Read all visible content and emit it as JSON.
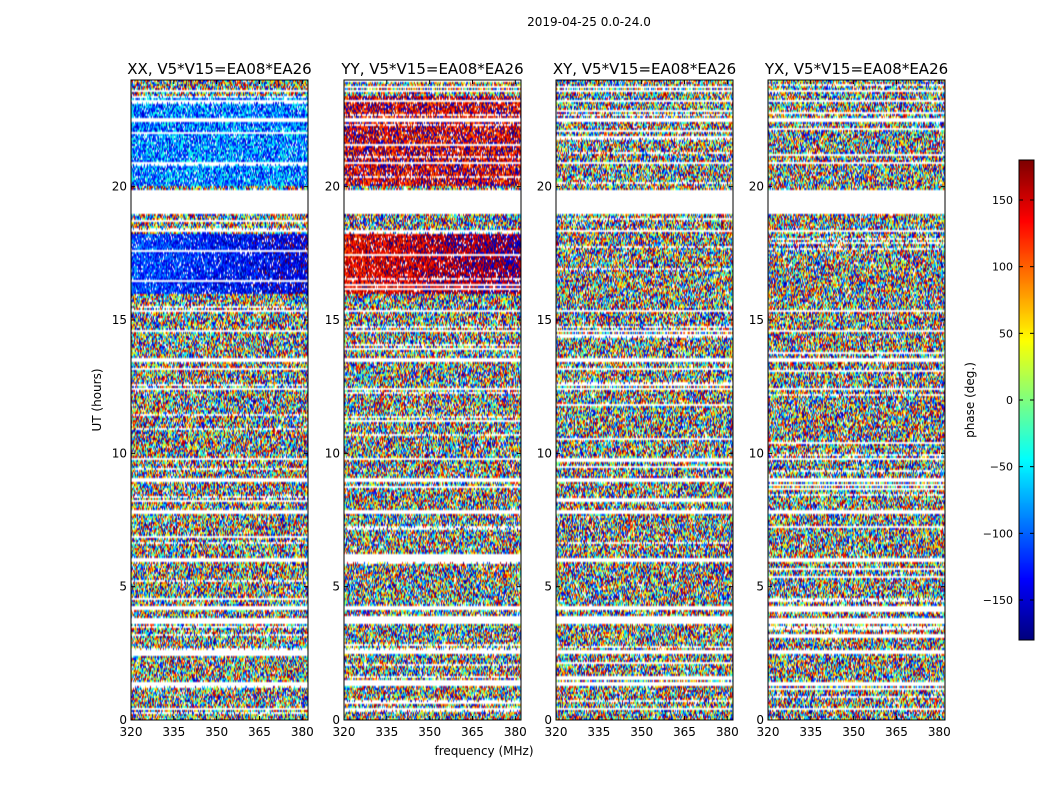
{
  "chart_data": {
    "type": "heatmap",
    "suptitle": "2019-04-25 0.0-24.0",
    "xlabel": "frequency (MHz)",
    "ylabel": "UT (hours)",
    "xlim": [
      320,
      382
    ],
    "ylim": [
      0,
      24
    ],
    "xticks": [
      320,
      335,
      350,
      365,
      380
    ],
    "yticks": [
      0,
      5,
      10,
      15,
      20
    ],
    "colorbar": {
      "label": "phase (deg.)",
      "range": [
        -180,
        180
      ],
      "ticks": [
        -150,
        -100,
        -50,
        0,
        50,
        100,
        150
      ],
      "tick_labels": [
        "−150",
        "−100",
        "−50",
        "0",
        "50",
        "100",
        "150"
      ],
      "colormap": "jet",
      "colors": [
        "#00007f",
        "#0000ff",
        "#007fff",
        "#00ffff",
        "#7fff7f",
        "#ffff00",
        "#ff7f00",
        "#ff0000",
        "#7f0000"
      ]
    },
    "panels": [
      {
        "title": "XX, V5*V15=EA08*EA26",
        "pol": "XX",
        "coherent_phase_16_18h": -110,
        "coherent_phase_19_23h": -90
      },
      {
        "title": "YY, V5*V15=EA08*EA26",
        "pol": "YY",
        "coherent_phase_16_18h": 140,
        "coherent_phase_19_23h": 150
      },
      {
        "title": "XY, V5*V15=EA08*EA26",
        "pol": "XY",
        "coherent_phase_16_18h": null,
        "coherent_phase_19_23h": null
      },
      {
        "title": "YX, V5*V15=EA08*EA26",
        "pol": "YX",
        "coherent_phase_16_18h": null,
        "coherent_phase_19_23h": null
      }
    ],
    "flagged_ut_ranges_hours": [
      [
        0.35,
        0.45
      ],
      [
        1.3,
        1.4
      ],
      [
        2.5,
        2.6
      ],
      [
        3.6,
        3.8
      ],
      [
        4.15,
        4.25
      ],
      [
        5.95,
        6.05
      ],
      [
        7.7,
        7.85
      ],
      [
        8.95,
        9.05
      ],
      [
        9.75,
        9.85
      ],
      [
        12.35,
        12.45
      ],
      [
        13.45,
        13.55
      ],
      [
        14.55,
        14.62
      ],
      [
        15.3,
        15.35
      ],
      [
        18.3,
        18.4
      ],
      [
        19.0,
        19.9
      ],
      [
        20.85,
        20.95
      ],
      [
        22.45,
        22.55
      ],
      [
        23.15,
        23.25
      ],
      [
        23.55,
        23.65
      ]
    ]
  }
}
